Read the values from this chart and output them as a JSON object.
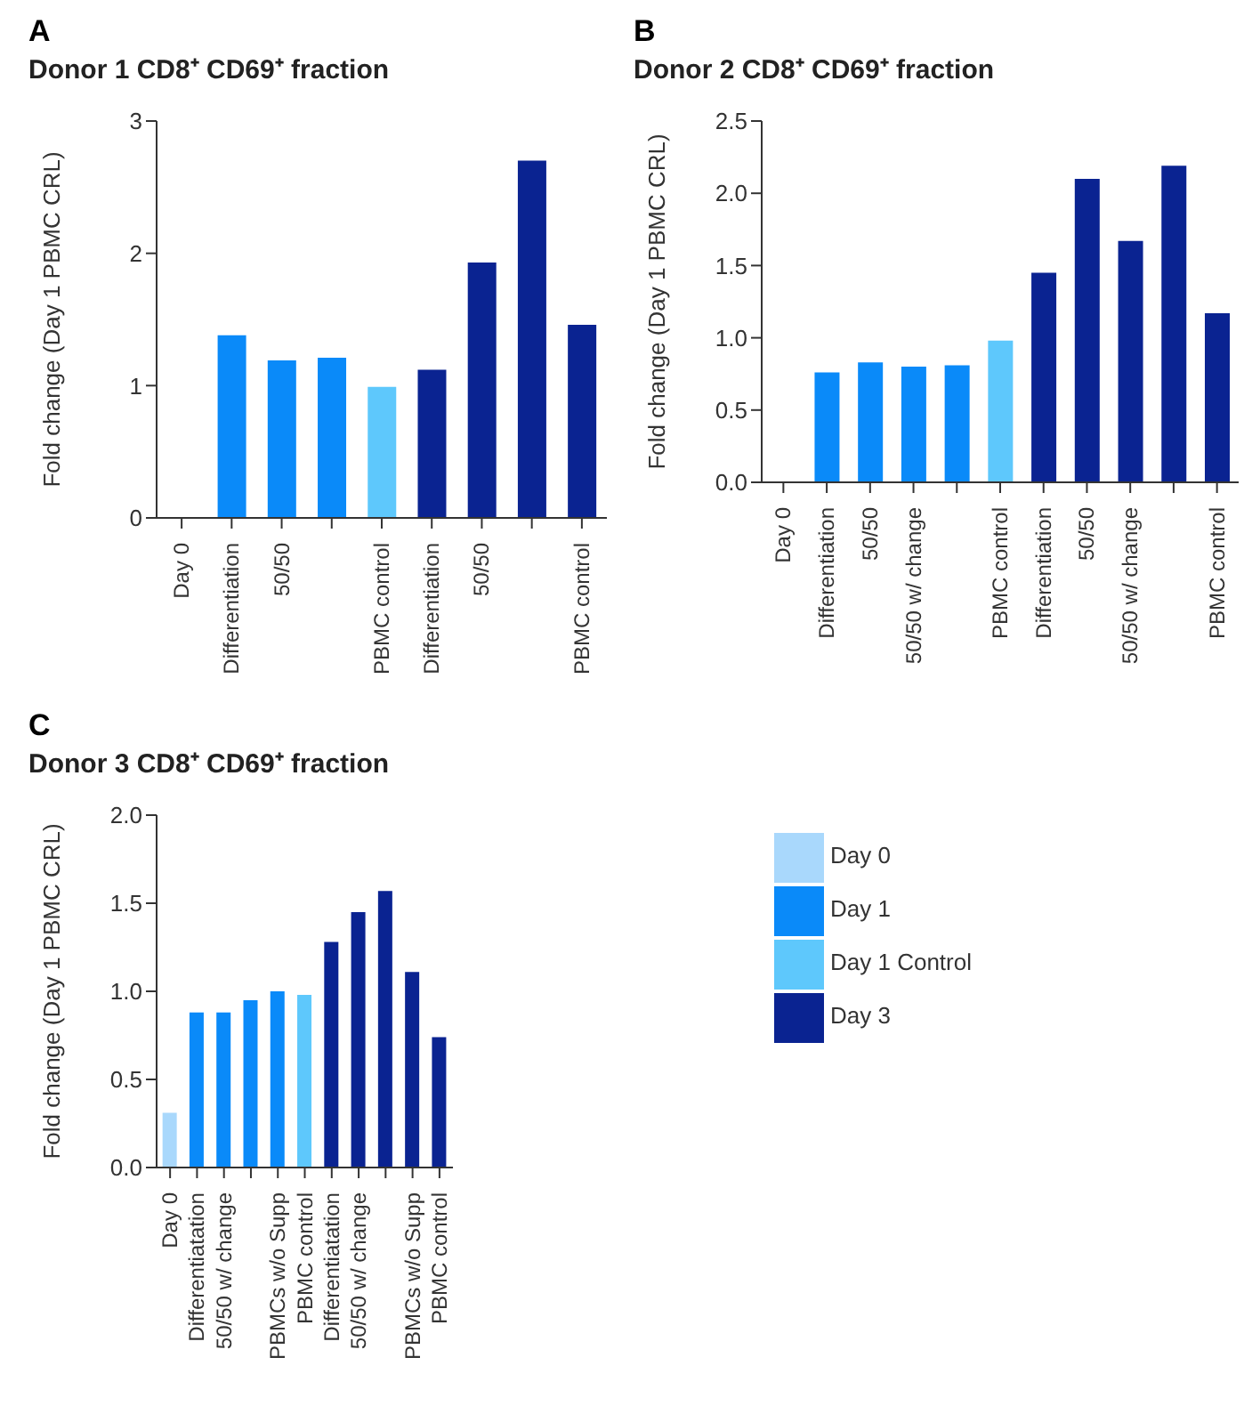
{
  "chart_data": [
    {
      "type": "bar",
      "annotations": [
        "A"
      ],
      "title": "Donor 1 CD8⁺ CD69⁺ fraction",
      "ylabel": "Fold change (Day 1 PBMC CRL)",
      "categories": [
        "Day 0",
        "Differentiation",
        "50/50",
        null,
        "PBMC control",
        "Differentiation",
        "50/50",
        null,
        "PBMC control"
      ],
      "stacked": true,
      "legend": false,
      "ylim": [
        0,
        3
      ],
      "yticks": [
        0,
        1,
        2,
        3
      ],
      "series": [
        {
          "color": "#a9d8fc",
          "values": [
            0,
            null,
            null,
            null,
            null,
            null,
            null,
            null,
            null
          ]
        },
        {
          "color": "#0a8af9",
          "values": [
            null,
            1.38,
            1.19,
            1.21,
            null,
            null,
            null,
            null,
            null
          ]
        },
        {
          "color": "#5ec8fc",
          "values": [
            null,
            null,
            null,
            null,
            0.99,
            null,
            null,
            null,
            null
          ]
        },
        {
          "color": "#0a2391",
          "values": [
            null,
            null,
            null,
            null,
            null,
            1.12,
            1.93,
            2.7,
            1.46
          ]
        }
      ]
    },
    {
      "type": "bar",
      "annotations": [
        "B"
      ],
      "title": "Donor 2 CD8⁺ CD69⁺ fraction",
      "ylabel": "Fold change (Day 1 PBMC CRL)",
      "categories": [
        "Day 0",
        "Differentiation",
        "50/50",
        "50/50 w/ change",
        null,
        "PBMC control",
        "Differentiation",
        "50/50",
        "50/50 w/ change",
        null,
        "PBMC control"
      ],
      "stacked": true,
      "legend": false,
      "ylim": [
        0,
        2.5
      ],
      "yticks": [
        {
          "value": 0,
          "label": "0.0"
        },
        {
          "value": 0.5,
          "label": "0.5"
        },
        {
          "value": 1,
          "label": "1.0"
        },
        {
          "value": 1.5,
          "label": "1.5"
        },
        {
          "value": 2,
          "label": "2.0"
        },
        {
          "value": 2.5,
          "label": "2.5"
        }
      ],
      "series": [
        {
          "color": "#a9d8fc",
          "values": [
            0,
            null,
            null,
            null,
            null,
            null,
            null,
            null,
            null,
            null,
            null
          ]
        },
        {
          "color": "#0a8af9",
          "values": [
            null,
            0.76,
            0.83,
            0.8,
            0.81,
            null,
            null,
            null,
            null,
            null,
            null
          ]
        },
        {
          "color": "#5ec8fc",
          "values": [
            null,
            null,
            null,
            null,
            null,
            0.98,
            null,
            null,
            null,
            null,
            null
          ]
        },
        {
          "color": "#0a2391",
          "values": [
            null,
            null,
            null,
            null,
            null,
            null,
            1.45,
            2.1,
            1.67,
            2.19,
            1.17
          ]
        }
      ]
    },
    {
      "type": "bar",
      "annotations": [
        "C"
      ],
      "title": "Donor 3 CD8⁺ CD69⁺ fraction",
      "ylabel": "Fold change (Day 1 PBMC CRL)",
      "categories": [
        "Day 0",
        "Differentiatation",
        "50/50 w/ change",
        null,
        "PBMCs w/o Supp",
        "PBMC control",
        "Differentiatation",
        "50/50 w/ change",
        null,
        "PBMCs w/o Supp",
        "PBMC control"
      ],
      "stacked": true,
      "legend": "right",
      "ylim": [
        0,
        2
      ],
      "yticks": [
        {
          "value": 0,
          "label": "0.0"
        },
        {
          "value": 0.5,
          "label": "0.5"
        },
        {
          "value": 1,
          "label": "1.0"
        },
        {
          "value": 1.5,
          "label": "1.5"
        },
        {
          "value": 2,
          "label": "2.0"
        }
      ],
      "series": [
        {
          "name": "Day 0",
          "color": "#a9d8fc",
          "values": [
            0.31,
            null,
            null,
            null,
            null,
            null,
            null,
            null,
            null,
            null,
            null
          ]
        },
        {
          "name": "Day 1",
          "color": "#0a8af9",
          "values": [
            null,
            0.88,
            0.88,
            0.95,
            1.0,
            null,
            null,
            null,
            null,
            null,
            null
          ]
        },
        {
          "name": "Day 1 Control",
          "color": "#5ec8fc",
          "values": [
            null,
            null,
            null,
            null,
            null,
            0.98,
            null,
            null,
            null,
            null,
            null
          ]
        },
        {
          "name": "Day 3",
          "color": "#0a2391",
          "values": [
            null,
            null,
            null,
            null,
            null,
            null,
            1.28,
            1.45,
            1.57,
            1.11,
            0.74
          ]
        }
      ]
    }
  ]
}
